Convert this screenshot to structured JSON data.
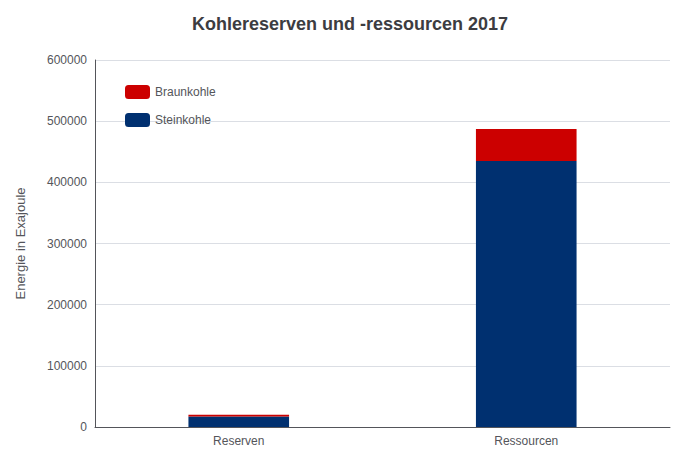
{
  "chart_data": {
    "type": "bar",
    "title": "Kohlereserven und -ressourcen 2017",
    "categories": [
      "Reserven",
      "Ressourcen"
    ],
    "series": [
      {
        "name": "Steinkohle",
        "color": "#003070",
        "values": [
          17000,
          435000
        ]
      },
      {
        "name": "Braunkohle",
        "color": "#cc0000",
        "values": [
          3000,
          52000
        ]
      }
    ],
    "stacked": true,
    "ylabel": "Energie in Exajoule",
    "ylim": [
      0,
      600000
    ],
    "yticks": [
      0,
      100000,
      200000,
      300000,
      400000,
      500000,
      600000
    ],
    "grid": true,
    "legend": "upper left"
  }
}
